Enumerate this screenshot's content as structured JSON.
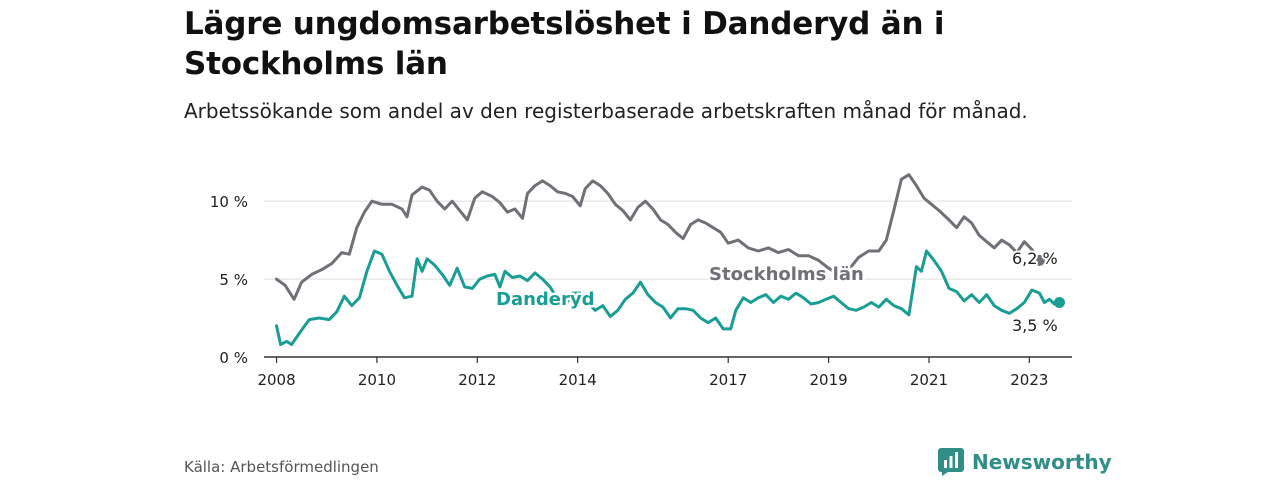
{
  "title": "Lägre ungdomsarbetslöshet i Danderyd än i Stockholms län",
  "subtitle": "Arbetssökande som andel av den registerbaserade arbetskraften månad för månad.",
  "source": "Källa: Arbetsförmedlingen",
  "brand": "Newsworthy",
  "colors": {
    "stockholm": "#707076",
    "danderyd": "#1a9e93",
    "brand": "#2f8f86",
    "grid": "#dddddd",
    "axis": "#333333"
  },
  "chart_data": {
    "type": "line",
    "title": "Lägre ungdomsarbetslöshet i Danderyd än i Stockholms län",
    "xlabel": "",
    "ylabel": "",
    "ylim": [
      0,
      12
    ],
    "xlim": [
      2007.75,
      2023.85
    ],
    "y_ticks": [
      0,
      5,
      10
    ],
    "y_tick_labels": [
      "0 %",
      "5 %",
      "10 %"
    ],
    "x_ticks": [
      2008,
      2010,
      2012,
      2014,
      2017,
      2019,
      2021,
      2023
    ],
    "x_tick_labels": [
      "2008",
      "2010",
      "2012",
      "2014",
      "2017",
      "2019",
      "2021",
      "2023"
    ],
    "grid": "horizontal",
    "series": [
      {
        "name": "Stockholms län",
        "label": "Stockholms län",
        "end_label": "6,2 %",
        "points": [
          [
            2008.0,
            5.0
          ],
          [
            2008.17,
            4.6
          ],
          [
            2008.35,
            3.7
          ],
          [
            2008.5,
            4.8
          ],
          [
            2008.7,
            5.3
          ],
          [
            2008.9,
            5.6
          ],
          [
            2009.1,
            6.0
          ],
          [
            2009.3,
            6.7
          ],
          [
            2009.45,
            6.6
          ],
          [
            2009.6,
            8.3
          ],
          [
            2009.75,
            9.3
          ],
          [
            2009.9,
            10.0
          ],
          [
            2010.1,
            9.8
          ],
          [
            2010.3,
            9.8
          ],
          [
            2010.5,
            9.5
          ],
          [
            2010.6,
            9.0
          ],
          [
            2010.7,
            10.4
          ],
          [
            2010.9,
            10.9
          ],
          [
            2011.05,
            10.7
          ],
          [
            2011.2,
            10.0
          ],
          [
            2011.35,
            9.5
          ],
          [
            2011.5,
            10.0
          ],
          [
            2011.7,
            9.2
          ],
          [
            2011.8,
            8.8
          ],
          [
            2011.95,
            10.2
          ],
          [
            2012.1,
            10.6
          ],
          [
            2012.3,
            10.3
          ],
          [
            2012.45,
            9.9
          ],
          [
            2012.6,
            9.3
          ],
          [
            2012.75,
            9.5
          ],
          [
            2012.9,
            8.9
          ],
          [
            2013.0,
            10.5
          ],
          [
            2013.15,
            11.0
          ],
          [
            2013.3,
            11.3
          ],
          [
            2013.45,
            11.0
          ],
          [
            2013.6,
            10.6
          ],
          [
            2013.75,
            10.5
          ],
          [
            2013.9,
            10.3
          ],
          [
            2014.05,
            9.7
          ],
          [
            2014.15,
            10.8
          ],
          [
            2014.3,
            11.3
          ],
          [
            2014.45,
            11.0
          ],
          [
            2014.6,
            10.5
          ],
          [
            2014.75,
            9.8
          ],
          [
            2014.9,
            9.4
          ],
          [
            2015.05,
            8.8
          ],
          [
            2015.2,
            9.6
          ],
          [
            2015.35,
            10.0
          ],
          [
            2015.5,
            9.5
          ],
          [
            2015.65,
            8.8
          ],
          [
            2015.8,
            8.5
          ],
          [
            2015.95,
            8.0
          ],
          [
            2016.1,
            7.6
          ],
          [
            2016.25,
            8.5
          ],
          [
            2016.4,
            8.8
          ],
          [
            2016.55,
            8.6
          ],
          [
            2016.7,
            8.3
          ],
          [
            2016.85,
            8.0
          ],
          [
            2017.0,
            7.3
          ],
          [
            2017.2,
            7.5
          ],
          [
            2017.4,
            7.0
          ],
          [
            2017.6,
            6.8
          ],
          [
            2017.8,
            7.0
          ],
          [
            2018.0,
            6.7
          ],
          [
            2018.2,
            6.9
          ],
          [
            2018.4,
            6.5
          ],
          [
            2018.6,
            6.5
          ],
          [
            2018.8,
            6.2
          ],
          [
            2019.0,
            5.7
          ],
          [
            2019.2,
            5.3
          ],
          [
            2019.4,
            5.6
          ],
          [
            2019.6,
            6.4
          ],
          [
            2019.8,
            6.8
          ],
          [
            2020.0,
            6.8
          ],
          [
            2020.15,
            7.5
          ],
          [
            2020.3,
            9.4
          ],
          [
            2020.45,
            11.4
          ],
          [
            2020.6,
            11.7
          ],
          [
            2020.75,
            11.0
          ],
          [
            2020.9,
            10.2
          ],
          [
            2021.05,
            9.8
          ],
          [
            2021.2,
            9.4
          ],
          [
            2021.4,
            8.8
          ],
          [
            2021.55,
            8.3
          ],
          [
            2021.7,
            9.0
          ],
          [
            2021.85,
            8.6
          ],
          [
            2022.0,
            7.8
          ],
          [
            2022.15,
            7.4
          ],
          [
            2022.3,
            7.0
          ],
          [
            2022.45,
            7.5
          ],
          [
            2022.6,
            7.2
          ],
          [
            2022.75,
            6.7
          ],
          [
            2022.9,
            7.4
          ],
          [
            2023.05,
            6.9
          ],
          [
            2023.2,
            6.2
          ]
        ]
      },
      {
        "name": "Danderyd",
        "label": "Danderyd",
        "end_label": "3,5 %",
        "points": [
          [
            2008.0,
            2.0
          ],
          [
            2008.08,
            0.8
          ],
          [
            2008.2,
            1.0
          ],
          [
            2008.3,
            0.8
          ],
          [
            2008.45,
            1.5
          ],
          [
            2008.65,
            2.4
          ],
          [
            2008.85,
            2.5
          ],
          [
            2009.05,
            2.4
          ],
          [
            2009.2,
            2.9
          ],
          [
            2009.35,
            3.9
          ],
          [
            2009.5,
            3.3
          ],
          [
            2009.65,
            3.8
          ],
          [
            2009.8,
            5.5
          ],
          [
            2009.95,
            6.8
          ],
          [
            2010.1,
            6.6
          ],
          [
            2010.25,
            5.5
          ],
          [
            2010.4,
            4.6
          ],
          [
            2010.55,
            3.8
          ],
          [
            2010.7,
            3.9
          ],
          [
            2010.8,
            6.3
          ],
          [
            2010.9,
            5.5
          ],
          [
            2011.0,
            6.3
          ],
          [
            2011.15,
            5.9
          ],
          [
            2011.3,
            5.3
          ],
          [
            2011.45,
            4.6
          ],
          [
            2011.6,
            5.7
          ],
          [
            2011.75,
            4.5
          ],
          [
            2011.9,
            4.4
          ],
          [
            2012.05,
            5.0
          ],
          [
            2012.2,
            5.2
          ],
          [
            2012.35,
            5.3
          ],
          [
            2012.45,
            4.5
          ],
          [
            2012.55,
            5.5
          ],
          [
            2012.7,
            5.1
          ],
          [
            2012.85,
            5.2
          ],
          [
            2013.0,
            4.9
          ],
          [
            2013.15,
            5.4
          ],
          [
            2013.3,
            5.0
          ],
          [
            2013.45,
            4.5
          ],
          [
            2013.6,
            3.7
          ],
          [
            2013.75,
            3.3
          ],
          [
            2013.9,
            4.1
          ],
          [
            2014.05,
            4.1
          ],
          [
            2014.2,
            3.5
          ],
          [
            2014.35,
            3.0
          ],
          [
            2014.5,
            3.3
          ],
          [
            2014.65,
            2.6
          ],
          [
            2014.8,
            3.0
          ],
          [
            2014.95,
            3.7
          ],
          [
            2015.1,
            4.1
          ],
          [
            2015.25,
            4.8
          ],
          [
            2015.4,
            4.0
          ],
          [
            2015.55,
            3.5
          ],
          [
            2015.7,
            3.2
          ],
          [
            2015.85,
            2.5
          ],
          [
            2016.0,
            3.1
          ],
          [
            2016.15,
            3.1
          ],
          [
            2016.3,
            3.0
          ],
          [
            2016.45,
            2.5
          ],
          [
            2016.6,
            2.2
          ],
          [
            2016.75,
            2.5
          ],
          [
            2016.9,
            1.8
          ],
          [
            2017.05,
            1.8
          ],
          [
            2017.15,
            3.0
          ],
          [
            2017.3,
            3.8
          ],
          [
            2017.45,
            3.5
          ],
          [
            2017.6,
            3.8
          ],
          [
            2017.75,
            4.0
          ],
          [
            2017.9,
            3.5
          ],
          [
            2018.05,
            3.9
          ],
          [
            2018.2,
            3.7
          ],
          [
            2018.35,
            4.1
          ],
          [
            2018.5,
            3.8
          ],
          [
            2018.65,
            3.4
          ],
          [
            2018.8,
            3.5
          ],
          [
            2018.95,
            3.7
          ],
          [
            2019.1,
            3.9
          ],
          [
            2019.25,
            3.5
          ],
          [
            2019.4,
            3.1
          ],
          [
            2019.55,
            3.0
          ],
          [
            2019.7,
            3.2
          ],
          [
            2019.85,
            3.5
          ],
          [
            2020.0,
            3.2
          ],
          [
            2020.15,
            3.7
          ],
          [
            2020.3,
            3.3
          ],
          [
            2020.45,
            3.1
          ],
          [
            2020.6,
            2.7
          ],
          [
            2020.75,
            5.8
          ],
          [
            2020.85,
            5.5
          ],
          [
            2020.95,
            6.8
          ],
          [
            2021.1,
            6.2
          ],
          [
            2021.25,
            5.5
          ],
          [
            2021.4,
            4.4
          ],
          [
            2021.55,
            4.2
          ],
          [
            2021.7,
            3.6
          ],
          [
            2021.85,
            4.0
          ],
          [
            2022.0,
            3.5
          ],
          [
            2022.15,
            4.0
          ],
          [
            2022.3,
            3.3
          ],
          [
            2022.45,
            3.0
          ],
          [
            2022.6,
            2.8
          ],
          [
            2022.75,
            3.1
          ],
          [
            2022.9,
            3.5
          ],
          [
            2023.05,
            4.3
          ],
          [
            2023.2,
            4.1
          ],
          [
            2023.3,
            3.5
          ],
          [
            2023.4,
            3.7
          ],
          [
            2023.5,
            3.4
          ],
          [
            2023.6,
            3.5
          ]
        ]
      }
    ]
  }
}
